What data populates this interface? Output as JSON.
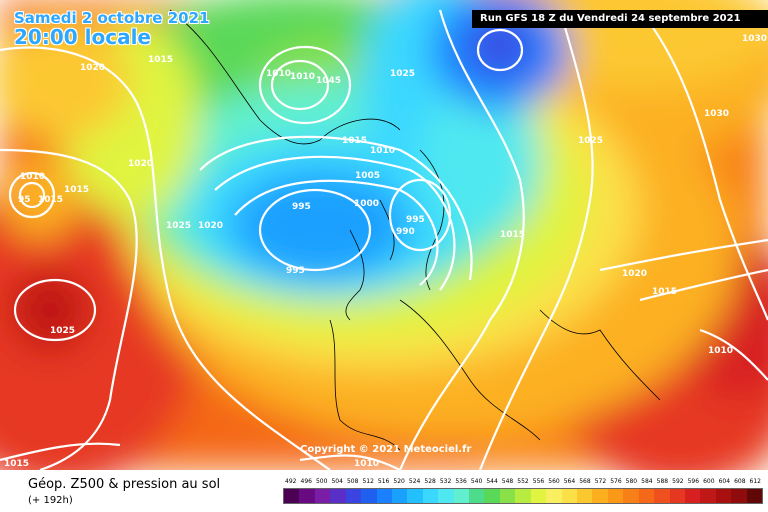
{
  "header": {
    "date": "Samedi 2 octobre 2021",
    "time": "20:00 locale",
    "run": "Run GFS 18 Z du Vendredi 24 septembre 2021"
  },
  "footer": {
    "title": "Géop. Z500 & pression au sol",
    "forecast": "(+ 192h)",
    "copyright": "Copyright © 2021 Meteociel.fr"
  },
  "legend": {
    "values": [
      "492",
      "496",
      "500",
      "504",
      "508",
      "512",
      "516",
      "520",
      "524",
      "528",
      "532",
      "536",
      "540",
      "544",
      "548",
      "552",
      "556",
      "560",
      "564",
      "568",
      "572",
      "576",
      "580",
      "584",
      "588",
      "592",
      "596",
      "600",
      "604",
      "608",
      "612"
    ],
    "colors": [
      "#4b0056",
      "#6a0a82",
      "#7a1ea8",
      "#5a2fc8",
      "#3a44e0",
      "#2060f0",
      "#1a80ff",
      "#1aa0ff",
      "#22c0ff",
      "#3ad8ff",
      "#50e8f0",
      "#60f0d0",
      "#4cdc8c",
      "#5ad858",
      "#8ae048",
      "#b8ec40",
      "#e0f440",
      "#f8f060",
      "#fce048",
      "#fcc830",
      "#fcb020",
      "#fa9818",
      "#f88018",
      "#f46818",
      "#ee5020",
      "#e63820",
      "#d82020",
      "#c01818",
      "#a81010",
      "#900c0c",
      "#600808"
    ]
  },
  "isobars": [
    "1020",
    "1015",
    "1025",
    "1010",
    "1010",
    "1045",
    "1025",
    "1030",
    "1030",
    "1015",
    "1010",
    "1020",
    "1010",
    "1015",
    "1020",
    "1005",
    "1025",
    "995",
    "1000",
    "995",
    "990",
    "1015",
    "995",
    "1025",
    "1020",
    "1015",
    "1010",
    "1015",
    "1010",
    "95",
    "1015"
  ],
  "colors": {
    "accent_title": "#2ea8ff",
    "isobar": "#ffffff"
  }
}
